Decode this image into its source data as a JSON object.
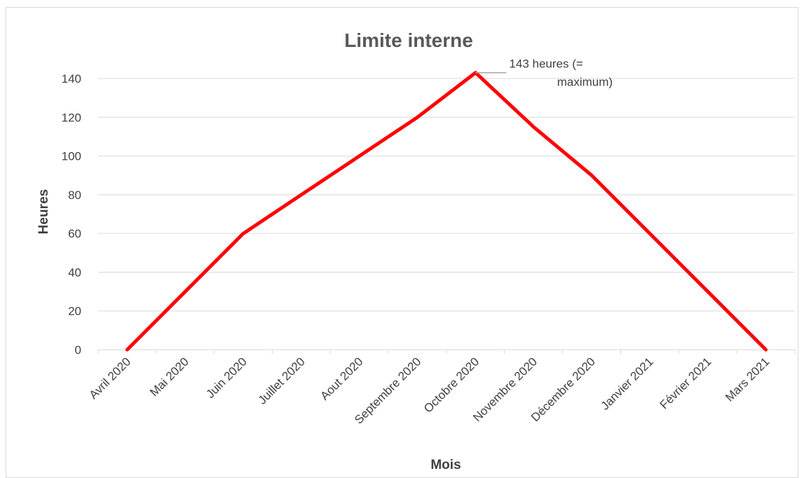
{
  "chart_data": {
    "type": "line",
    "title": "Limite interne",
    "xlabel": "Mois",
    "ylabel": "Heures",
    "categories": [
      "Avril 2020",
      "Mai 2020",
      "Juin 2020",
      "Juillet 2020",
      "Aout 2020",
      "Septembre 2020",
      "Octobre 2020",
      "Novembre 2020",
      "Décembre 2020",
      "Janvier 2021",
      "Février 2021",
      "Mars 2021"
    ],
    "series": [
      {
        "color": "#ff0000",
        "values": [
          0,
          30,
          60,
          80,
          100,
          120,
          143,
          115,
          90,
          60,
          30,
          0
        ]
      }
    ],
    "ylim": [
      0,
      140
    ],
    "yticks": [
      "0",
      "20",
      "40",
      "60",
      "80",
      "100",
      "120",
      "140"
    ],
    "grid": true,
    "legend": "none",
    "annotation": {
      "category": "Octobre 2020",
      "value": 143,
      "lines": [
        "143 heures (=",
        "maximum)"
      ]
    }
  }
}
